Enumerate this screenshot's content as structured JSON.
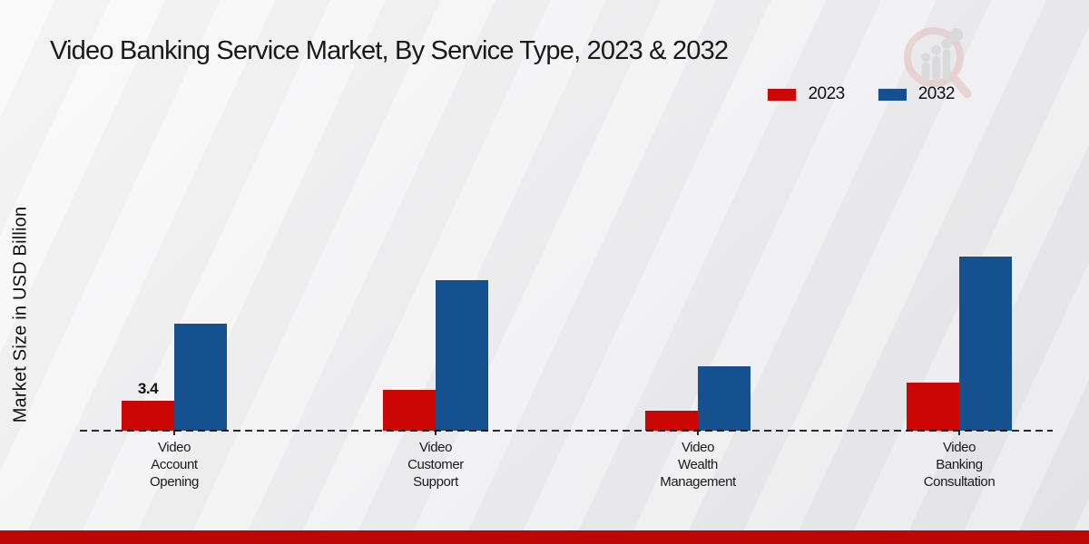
{
  "chart": {
    "title": "Video Banking Service Market, By Service Type, 2023 & 2032",
    "y_axis_label": "Market Size in USD Billion"
  },
  "colors": {
    "series_2023": "#cc0505",
    "series_2032": "#15518e",
    "bottom_bar": "#bd0606",
    "axis_line": "#1a1a1a"
  },
  "chart_data": {
    "type": "bar",
    "title": "Video Banking Service Market, By Service Type, 2023 & 2032",
    "xlabel": "",
    "ylabel": "Market Size in USD Billion",
    "categories": [
      "Video Account Opening",
      "Video Customer Support",
      "Video Wealth Management",
      "Video Banking Consultation"
    ],
    "series": [
      {
        "name": "2023",
        "color": "#cc0505",
        "values": [
          3.4,
          4.6,
          2.3,
          5.5
        ]
      },
      {
        "name": "2032",
        "color": "#15518e",
        "values": [
          12.2,
          17.1,
          7.3,
          19.8
        ]
      }
    ],
    "annotations": [
      {
        "text": "3.4",
        "category_index": 0,
        "series_index": 0
      }
    ],
    "ylim": [
      0,
      25
    ],
    "grid": false,
    "legend_position": "top-right",
    "baseline_style": "dashed"
  }
}
